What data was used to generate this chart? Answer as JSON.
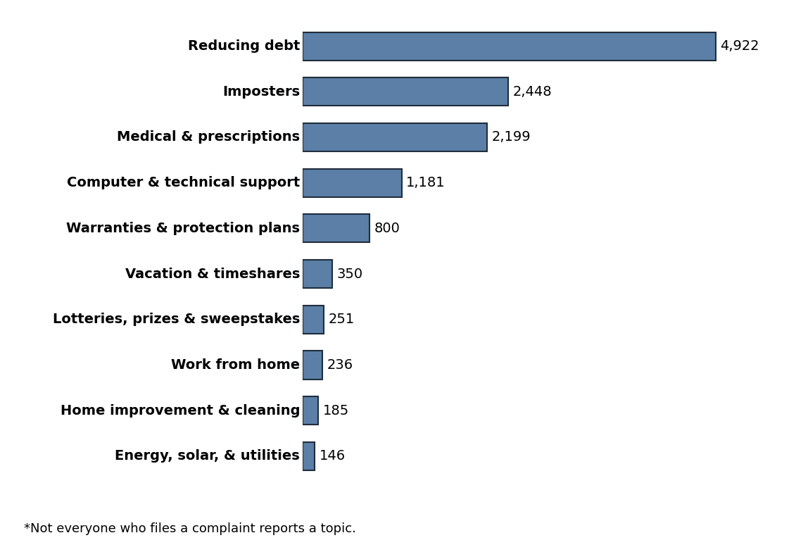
{
  "categories": [
    "Energy, solar, & utilities",
    "Home improvement & cleaning",
    "Work from home",
    "Lotteries, prizes & sweepstakes",
    "Vacation & timeshares",
    "Warranties & protection plans",
    "Computer & technical support",
    "Medical & prescriptions",
    "Imposters",
    "Reducing debt"
  ],
  "values": [
    146,
    185,
    236,
    251,
    350,
    800,
    1181,
    2199,
    2448,
    4922
  ],
  "value_labels": [
    "146",
    "185",
    "236",
    "251",
    "350",
    "800",
    "1,181",
    "2,199",
    "2,448",
    "4,922"
  ],
  "bar_color": "#5b7fa6",
  "bar_edgecolor": "#1f2d3d",
  "bar_edgewidth": 1.5,
  "label_fontsize": 14,
  "value_fontsize": 14,
  "footnote": "*Not everyone who files a complaint reports a topic.",
  "footnote_fontsize": 13,
  "xlim": [
    0,
    5500
  ],
  "background_color": "#ffffff"
}
